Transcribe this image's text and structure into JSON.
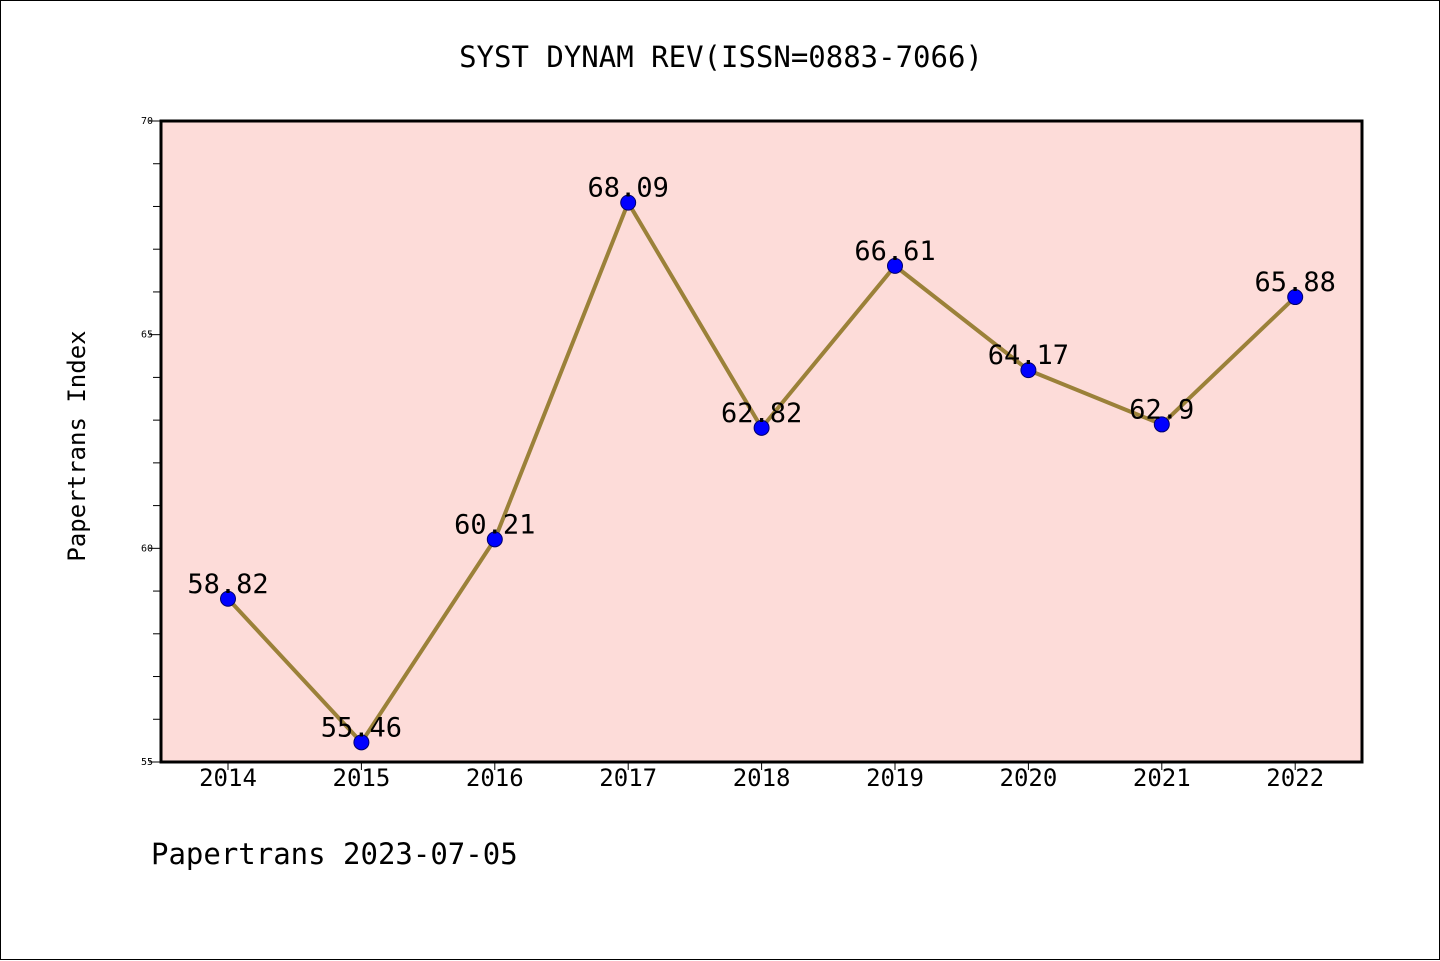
{
  "chart_data": {
    "type": "line",
    "title": "SYST DYNAM REV(ISSN=0883-7066)",
    "xlabel": "",
    "ylabel": "Papertrans Index",
    "footer": "Papertrans 2023-07-05",
    "categories": [
      "2014",
      "2015",
      "2016",
      "2017",
      "2018",
      "2019",
      "2020",
      "2021",
      "2022"
    ],
    "series": [
      {
        "values": [
          58.82,
          55.46,
          60.21,
          68.09,
          62.82,
          66.61,
          64.17,
          62.9,
          65.88
        ],
        "labels": [
          "58.82",
          "55.46",
          "60.21",
          "68.09",
          "62.82",
          "66.61",
          "64.17",
          "62.9",
          "65.88"
        ]
      }
    ],
    "ylim": [
      55,
      70
    ],
    "yticks": [
      "55",
      "60",
      "65",
      "70"
    ],
    "yminor_step": 1,
    "grid": false,
    "legend": "none",
    "colors": {
      "plot_background": "#fddcd9",
      "line": "#9b8139",
      "marker": "#0000ff",
      "axes": "#000000"
    }
  }
}
